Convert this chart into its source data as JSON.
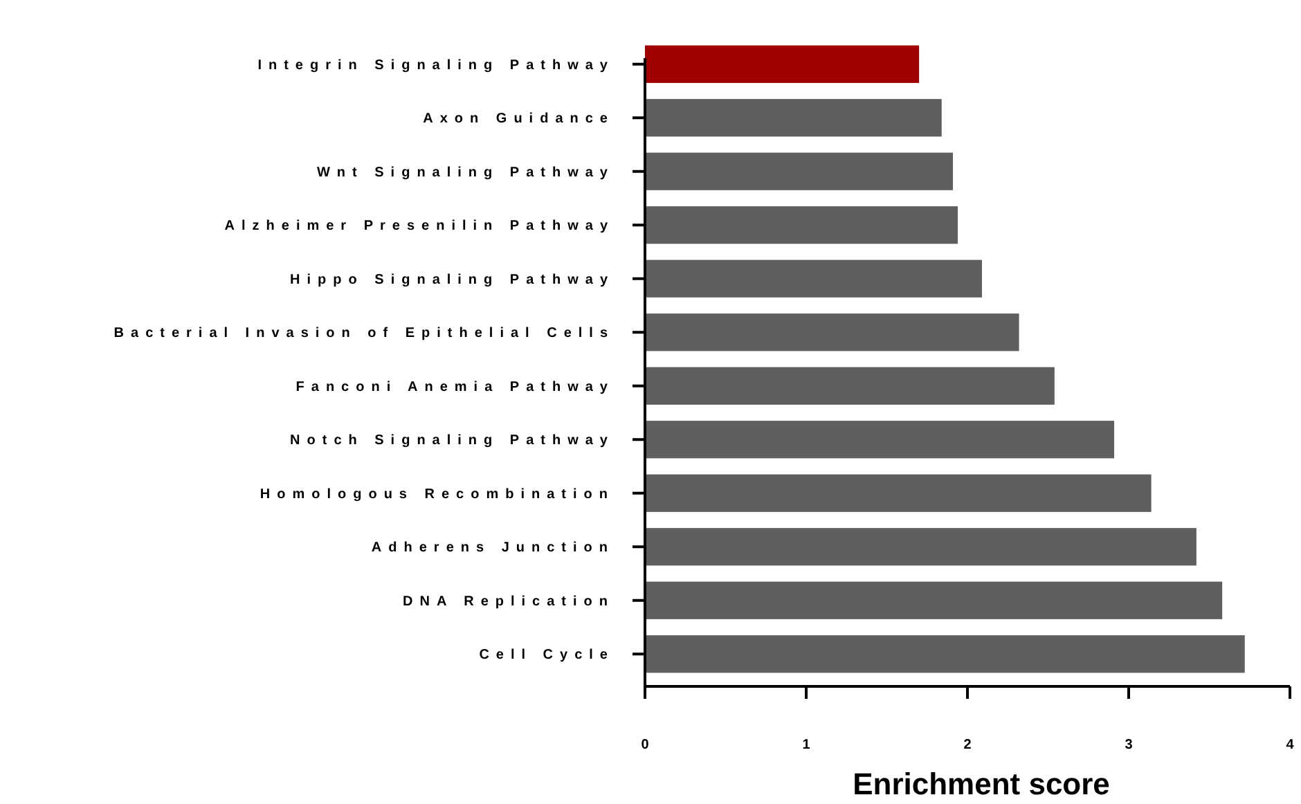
{
  "chart_data": {
    "type": "bar",
    "orientation": "horizontal",
    "xlabel": "Enrichment score",
    "categories": [
      "Integrin Signaling Pathway",
      "Axon Guidance",
      "Wnt Signaling Pathway",
      "Alzheimer Presenilin Pathway",
      "Hippo Signaling Pathway",
      "Bacterial Invasion of Epithelial Cells",
      "Fanconi Anemia Pathway",
      "Notch Signaling Pathway",
      "Homologous Recombination",
      "Adherens Junction",
      "DNA Replication",
      "Cell Cycle"
    ],
    "values": [
      1.7,
      1.84,
      1.91,
      1.94,
      2.09,
      2.32,
      2.54,
      2.91,
      3.14,
      3.42,
      3.58,
      3.72
    ],
    "colors": [
      "#a00000",
      "#5f5f5f",
      "#5f5f5f",
      "#5f5f5f",
      "#5f5f5f",
      "#5f5f5f",
      "#5f5f5f",
      "#5f5f5f",
      "#5f5f5f",
      "#5f5f5f",
      "#5f5f5f",
      "#5f5f5f"
    ],
    "xlim": [
      0,
      4
    ],
    "xticks": [
      0,
      1,
      2,
      3,
      4
    ],
    "grid": false
  }
}
